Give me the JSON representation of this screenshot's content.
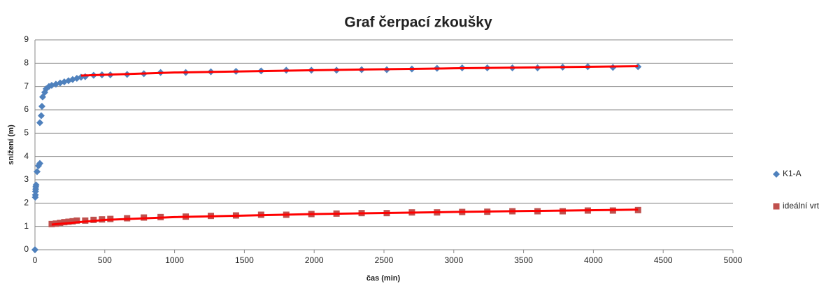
{
  "chart_data": {
    "type": "scatter",
    "title": "Graf čerpací zkoušky",
    "x_label": "čas (min)",
    "y_label": "snížení (m)",
    "xlim": [
      0,
      5000
    ],
    "xticks": [
      0,
      500,
      1000,
      1500,
      2000,
      2500,
      3000,
      3500,
      4000,
      4500,
      5000
    ],
    "ylim": [
      0,
      9
    ],
    "yticks": [
      0,
      1,
      2,
      3,
      4,
      5,
      6,
      7,
      8,
      9
    ],
    "grid": true,
    "legend": "right",
    "series": [
      {
        "name": "K1-A",
        "color": "#4f81bd",
        "marker": "diamond",
        "x": [
          0,
          2,
          3,
          4,
          5,
          6,
          8,
          15,
          25,
          35,
          35,
          45,
          50,
          55,
          70,
          80,
          100,
          120,
          150,
          180,
          210,
          240,
          270,
          300,
          330,
          360,
          420,
          480,
          540,
          660,
          780,
          900,
          1080,
          1260,
          1440,
          1620,
          1800,
          1980,
          2160,
          2340,
          2520,
          2700,
          2880,
          3060,
          3240,
          3420,
          3600,
          3780,
          3960,
          4140,
          4320
        ],
        "values": [
          0,
          2.25,
          2.35,
          2.5,
          2.6,
          2.7,
          2.78,
          3.35,
          3.6,
          3.7,
          5.45,
          5.75,
          6.15,
          6.55,
          6.75,
          6.9,
          7.0,
          7.05,
          7.1,
          7.15,
          7.2,
          7.25,
          7.3,
          7.35,
          7.4,
          7.42,
          7.48,
          7.5,
          7.5,
          7.52,
          7.55,
          7.6,
          7.6,
          7.63,
          7.65,
          7.67,
          7.7,
          7.7,
          7.7,
          7.72,
          7.72,
          7.75,
          7.78,
          7.8,
          7.8,
          7.8,
          7.8,
          7.83,
          7.85,
          7.82,
          7.85
        ]
      },
      {
        "name": "ideální vrt",
        "color": "#c0504d",
        "marker": "square",
        "x": [
          120,
          150,
          180,
          210,
          240,
          270,
          300,
          360,
          420,
          480,
          540,
          660,
          780,
          900,
          1080,
          1260,
          1440,
          1620,
          1800,
          1980,
          2160,
          2340,
          2520,
          2700,
          2880,
          3060,
          3240,
          3420,
          3600,
          3780,
          3960,
          4140,
          4320
        ],
        "values": [
          1.1,
          1.12,
          1.15,
          1.18,
          1.2,
          1.22,
          1.25,
          1.25,
          1.28,
          1.3,
          1.32,
          1.35,
          1.38,
          1.4,
          1.42,
          1.45,
          1.47,
          1.5,
          1.5,
          1.53,
          1.55,
          1.57,
          1.57,
          1.6,
          1.6,
          1.62,
          1.63,
          1.65,
          1.65,
          1.65,
          1.68,
          1.68,
          1.7
        ]
      }
    ],
    "trendlines": [
      {
        "color": "#ff0000",
        "x": [
          330,
          1000,
          2000,
          3000,
          4320
        ],
        "values": [
          7.47,
          7.6,
          7.7,
          7.78,
          7.87
        ]
      },
      {
        "color": "#ff0000",
        "x": [
          120,
          500,
          1000,
          2000,
          3000,
          4320
        ],
        "values": [
          1.08,
          1.28,
          1.4,
          1.53,
          1.62,
          1.72
        ]
      }
    ]
  }
}
